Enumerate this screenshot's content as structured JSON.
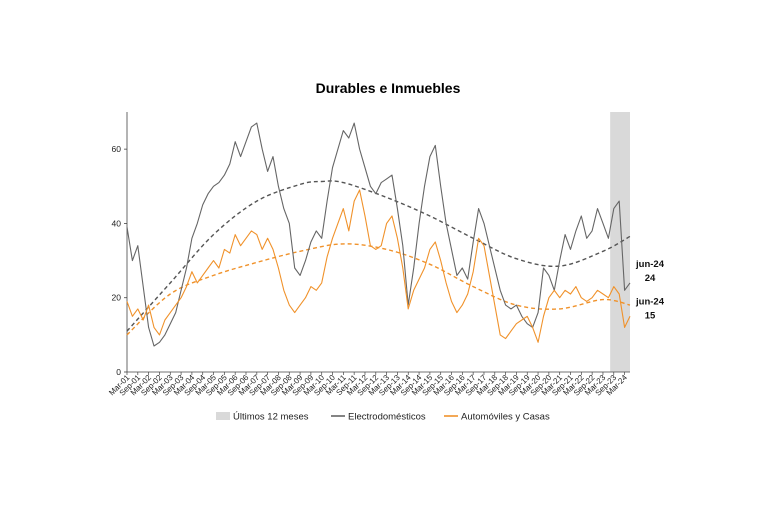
{
  "chart_data": {
    "type": "line",
    "title": "Durables e Inmuebles",
    "xlabel": "",
    "ylabel": "",
    "ylim": [
      0,
      70
    ],
    "yticks": [
      0,
      20,
      40,
      60
    ],
    "grid": false,
    "legend_position": "bottom",
    "x_tick_labels": [
      "Mar-01",
      "Sep-01",
      "Mar-02",
      "Sep-02",
      "Mar-03",
      "Sep-03",
      "Mar-04",
      "Sep-04",
      "Mar-05",
      "Sep-05",
      "Mar-06",
      "Sep-06",
      "Mar-07",
      "Sep-07",
      "Mar-08",
      "Sep-08",
      "Mar-09",
      "Sep-09",
      "Mar-10",
      "Sep-10",
      "Mar-11",
      "Sep-11",
      "Mar-12",
      "Sep-12",
      "Mar-13",
      "Sep-13",
      "Mar-14",
      "Sep-14",
      "Mar-15",
      "Sep-15",
      "Mar-16",
      "Sep-16",
      "Mar-17",
      "Sep-17",
      "Mar-18",
      "Sep-18",
      "Mar-19",
      "Sep-19",
      "Mar-20",
      "Sep-20",
      "Mar-21",
      "Sep-21",
      "Mar-22",
      "Sep-22",
      "Mar-23",
      "Sep-23",
      "Mar-24"
    ],
    "x_range": [
      "Mar-01",
      "Jun-24"
    ],
    "shaded_period": {
      "label": "Últimos 12 meses",
      "from": "Jul-23",
      "to": "Jun-24",
      "color": "#d9d9d9"
    },
    "series": [
      {
        "name": "Electrodomésticos",
        "color": "#666666",
        "style": "solid",
        "points": [
          [
            "Mar-01",
            39
          ],
          [
            "Jun-01",
            30
          ],
          [
            "Sep-01",
            34
          ],
          [
            "Dec-01",
            23
          ],
          [
            "Mar-02",
            12
          ],
          [
            "Jun-02",
            7
          ],
          [
            "Sep-02",
            8
          ],
          [
            "Dec-02",
            10
          ],
          [
            "Mar-03",
            13
          ],
          [
            "Jun-03",
            16
          ],
          [
            "Sep-03",
            22
          ],
          [
            "Dec-03",
            28
          ],
          [
            "Mar-04",
            36
          ],
          [
            "Jun-04",
            40
          ],
          [
            "Sep-04",
            45
          ],
          [
            "Dec-04",
            48
          ],
          [
            "Mar-05",
            50
          ],
          [
            "Jun-05",
            51
          ],
          [
            "Sep-05",
            53
          ],
          [
            "Dec-05",
            56
          ],
          [
            "Mar-06",
            62
          ],
          [
            "Jun-06",
            58
          ],
          [
            "Sep-06",
            62
          ],
          [
            "Dec-06",
            66
          ],
          [
            "Mar-07",
            67
          ],
          [
            "Jun-07",
            60
          ],
          [
            "Sep-07",
            54
          ],
          [
            "Dec-07",
            58
          ],
          [
            "Mar-08",
            50
          ],
          [
            "Jun-08",
            44
          ],
          [
            "Sep-08",
            40
          ],
          [
            "Dec-08",
            28
          ],
          [
            "Mar-09",
            26
          ],
          [
            "Jun-09",
            30
          ],
          [
            "Sep-09",
            35
          ],
          [
            "Dec-09",
            38
          ],
          [
            "Mar-10",
            36
          ],
          [
            "Jun-10",
            46
          ],
          [
            "Sep-10",
            55
          ],
          [
            "Dec-10",
            60
          ],
          [
            "Mar-11",
            65
          ],
          [
            "Jun-11",
            63
          ],
          [
            "Sep-11",
            67
          ],
          [
            "Dec-11",
            60
          ],
          [
            "Mar-12",
            55
          ],
          [
            "Jun-12",
            50
          ],
          [
            "Sep-12",
            48
          ],
          [
            "Dec-12",
            51
          ],
          [
            "Mar-13",
            52
          ],
          [
            "Jun-13",
            53
          ],
          [
            "Sep-13",
            44
          ],
          [
            "Dec-13",
            34
          ],
          [
            "Mar-14",
            18
          ],
          [
            "Jun-14",
            28
          ],
          [
            "Sep-14",
            40
          ],
          [
            "Dec-14",
            50
          ],
          [
            "Mar-15",
            58
          ],
          [
            "Jun-15",
            61
          ],
          [
            "Sep-15",
            50
          ],
          [
            "Dec-15",
            40
          ],
          [
            "Mar-16",
            33
          ],
          [
            "Jun-16",
            26
          ],
          [
            "Sep-16",
            28
          ],
          [
            "Dec-16",
            25
          ],
          [
            "Mar-17",
            35
          ],
          [
            "Jun-17",
            44
          ],
          [
            "Sep-17",
            40
          ],
          [
            "Dec-17",
            34
          ],
          [
            "Mar-18",
            28
          ],
          [
            "Jun-18",
            22
          ],
          [
            "Sep-18",
            18
          ],
          [
            "Dec-18",
            17
          ],
          [
            "Mar-19",
            18
          ],
          [
            "Jun-19",
            15
          ],
          [
            "Sep-19",
            13
          ],
          [
            "Dec-19",
            12
          ],
          [
            "Mar-20",
            16
          ],
          [
            "Jun-20",
            28
          ],
          [
            "Sep-20",
            26
          ],
          [
            "Dec-20",
            22
          ],
          [
            "Mar-21",
            30
          ],
          [
            "Jun-21",
            37
          ],
          [
            "Sep-21",
            33
          ],
          [
            "Dec-21",
            38
          ],
          [
            "Mar-22",
            42
          ],
          [
            "Jun-22",
            36
          ],
          [
            "Sep-22",
            38
          ],
          [
            "Dec-22",
            44
          ],
          [
            "Mar-23",
            40
          ],
          [
            "Jun-23",
            36
          ],
          [
            "Sep-23",
            44
          ],
          [
            "Dec-23",
            46
          ],
          [
            "Mar-24",
            22
          ],
          [
            "Jun-24",
            24
          ]
        ]
      },
      {
        "name": "Automóviles y Casas",
        "color": "#f0922b",
        "style": "solid",
        "points": [
          [
            "Mar-01",
            19
          ],
          [
            "Jun-01",
            15
          ],
          [
            "Sep-01",
            17
          ],
          [
            "Dec-01",
            14
          ],
          [
            "Mar-02",
            18
          ],
          [
            "Jun-02",
            12
          ],
          [
            "Sep-02",
            10
          ],
          [
            "Dec-02",
            14
          ],
          [
            "Mar-03",
            16
          ],
          [
            "Jun-03",
            18
          ],
          [
            "Sep-03",
            20
          ],
          [
            "Dec-03",
            23
          ],
          [
            "Mar-04",
            27
          ],
          [
            "Jun-04",
            24
          ],
          [
            "Sep-04",
            26
          ],
          [
            "Dec-04",
            28
          ],
          [
            "Mar-05",
            30
          ],
          [
            "Jun-05",
            28
          ],
          [
            "Sep-05",
            33
          ],
          [
            "Dec-05",
            32
          ],
          [
            "Mar-06",
            37
          ],
          [
            "Jun-06",
            34
          ],
          [
            "Sep-06",
            36
          ],
          [
            "Dec-06",
            38
          ],
          [
            "Mar-07",
            37
          ],
          [
            "Jun-07",
            33
          ],
          [
            "Sep-07",
            36
          ],
          [
            "Dec-07",
            33
          ],
          [
            "Mar-08",
            28
          ],
          [
            "Jun-08",
            22
          ],
          [
            "Sep-08",
            18
          ],
          [
            "Dec-08",
            16
          ],
          [
            "Mar-09",
            18
          ],
          [
            "Jun-09",
            20
          ],
          [
            "Sep-09",
            23
          ],
          [
            "Dec-09",
            22
          ],
          [
            "Mar-10",
            24
          ],
          [
            "Jun-10",
            31
          ],
          [
            "Sep-10",
            36
          ],
          [
            "Dec-10",
            40
          ],
          [
            "Mar-11",
            44
          ],
          [
            "Jun-11",
            38
          ],
          [
            "Sep-11",
            46
          ],
          [
            "Dec-11",
            49
          ],
          [
            "Mar-12",
            42
          ],
          [
            "Jun-12",
            34
          ],
          [
            "Sep-12",
            33
          ],
          [
            "Dec-12",
            34
          ],
          [
            "Mar-13",
            40
          ],
          [
            "Jun-13",
            42
          ],
          [
            "Sep-13",
            36
          ],
          [
            "Dec-13",
            28
          ],
          [
            "Mar-14",
            17
          ],
          [
            "Jun-14",
            22
          ],
          [
            "Sep-14",
            25
          ],
          [
            "Dec-14",
            28
          ],
          [
            "Mar-15",
            33
          ],
          [
            "Jun-15",
            35
          ],
          [
            "Sep-15",
            30
          ],
          [
            "Dec-15",
            24
          ],
          [
            "Mar-16",
            19
          ],
          [
            "Jun-16",
            16
          ],
          [
            "Sep-16",
            18
          ],
          [
            "Dec-16",
            21
          ],
          [
            "Mar-17",
            27
          ],
          [
            "Jun-17",
            36
          ],
          [
            "Sep-17",
            34
          ],
          [
            "Dec-17",
            26
          ],
          [
            "Mar-18",
            18
          ],
          [
            "Jun-18",
            10
          ],
          [
            "Sep-18",
            9
          ],
          [
            "Dec-18",
            11
          ],
          [
            "Mar-19",
            13
          ],
          [
            "Jun-19",
            14
          ],
          [
            "Sep-19",
            15
          ],
          [
            "Dec-19",
            12
          ],
          [
            "Mar-20",
            8
          ],
          [
            "Jun-20",
            15
          ],
          [
            "Sep-20",
            20
          ],
          [
            "Dec-20",
            22
          ],
          [
            "Mar-21",
            20
          ],
          [
            "Jun-21",
            22
          ],
          [
            "Sep-21",
            21
          ],
          [
            "Dec-21",
            23
          ],
          [
            "Mar-22",
            20
          ],
          [
            "Jun-22",
            19
          ],
          [
            "Sep-22",
            20
          ],
          [
            "Dec-22",
            22
          ],
          [
            "Mar-23",
            21
          ],
          [
            "Jun-23",
            20
          ],
          [
            "Sep-23",
            23
          ],
          [
            "Dec-23",
            21
          ],
          [
            "Mar-24",
            12
          ],
          [
            "Jun-24",
            15
          ]
        ]
      },
      {
        "name": "",
        "color": "#555555",
        "style": "dashed",
        "kind": "trend",
        "points": [
          [
            "Mar-01",
            11
          ],
          [
            "Mar-03",
            24
          ],
          [
            "Mar-05",
            37
          ],
          [
            "Mar-07",
            46
          ],
          [
            "Mar-09",
            50.5
          ],
          [
            "Mar-10",
            51.3
          ],
          [
            "Mar-11",
            51
          ],
          [
            "Mar-13",
            47
          ],
          [
            "Mar-15",
            42
          ],
          [
            "Mar-17",
            36
          ],
          [
            "Mar-19",
            30.5
          ],
          [
            "Mar-21",
            28.5
          ],
          [
            "Mar-23",
            32.5
          ],
          [
            "Jun-24",
            36.5
          ]
        ]
      },
      {
        "name": "",
        "color": "#f0922b",
        "style": "dashed",
        "kind": "trend",
        "points": [
          [
            "Mar-01",
            10
          ],
          [
            "Mar-03",
            21
          ],
          [
            "Mar-05",
            26
          ],
          [
            "Mar-07",
            29.5
          ],
          [
            "Mar-09",
            32.5
          ],
          [
            "Mar-11",
            34.5
          ],
          [
            "Mar-13",
            33
          ],
          [
            "Mar-15",
            29
          ],
          [
            "Mar-17",
            23
          ],
          [
            "Mar-19",
            18
          ],
          [
            "Mar-21",
            17
          ],
          [
            "Mar-23",
            19.5
          ],
          [
            "Jun-24",
            18
          ]
        ]
      }
    ],
    "legend": [
      {
        "label": "Últimos 12 meses",
        "kind": "box",
        "color": "#d9d9d9"
      },
      {
        "label": "Electrodomésticos",
        "kind": "line",
        "color": "#666666"
      },
      {
        "label": "Automóviles y Casas",
        "kind": "line",
        "color": "#f0922b"
      }
    ],
    "end_labels": [
      {
        "line1": "jun-24",
        "line2": "24",
        "series": "Electrodomésticos"
      },
      {
        "line1": "jun-24",
        "line2": "15",
        "series": "Automóviles y Casas"
      }
    ]
  }
}
